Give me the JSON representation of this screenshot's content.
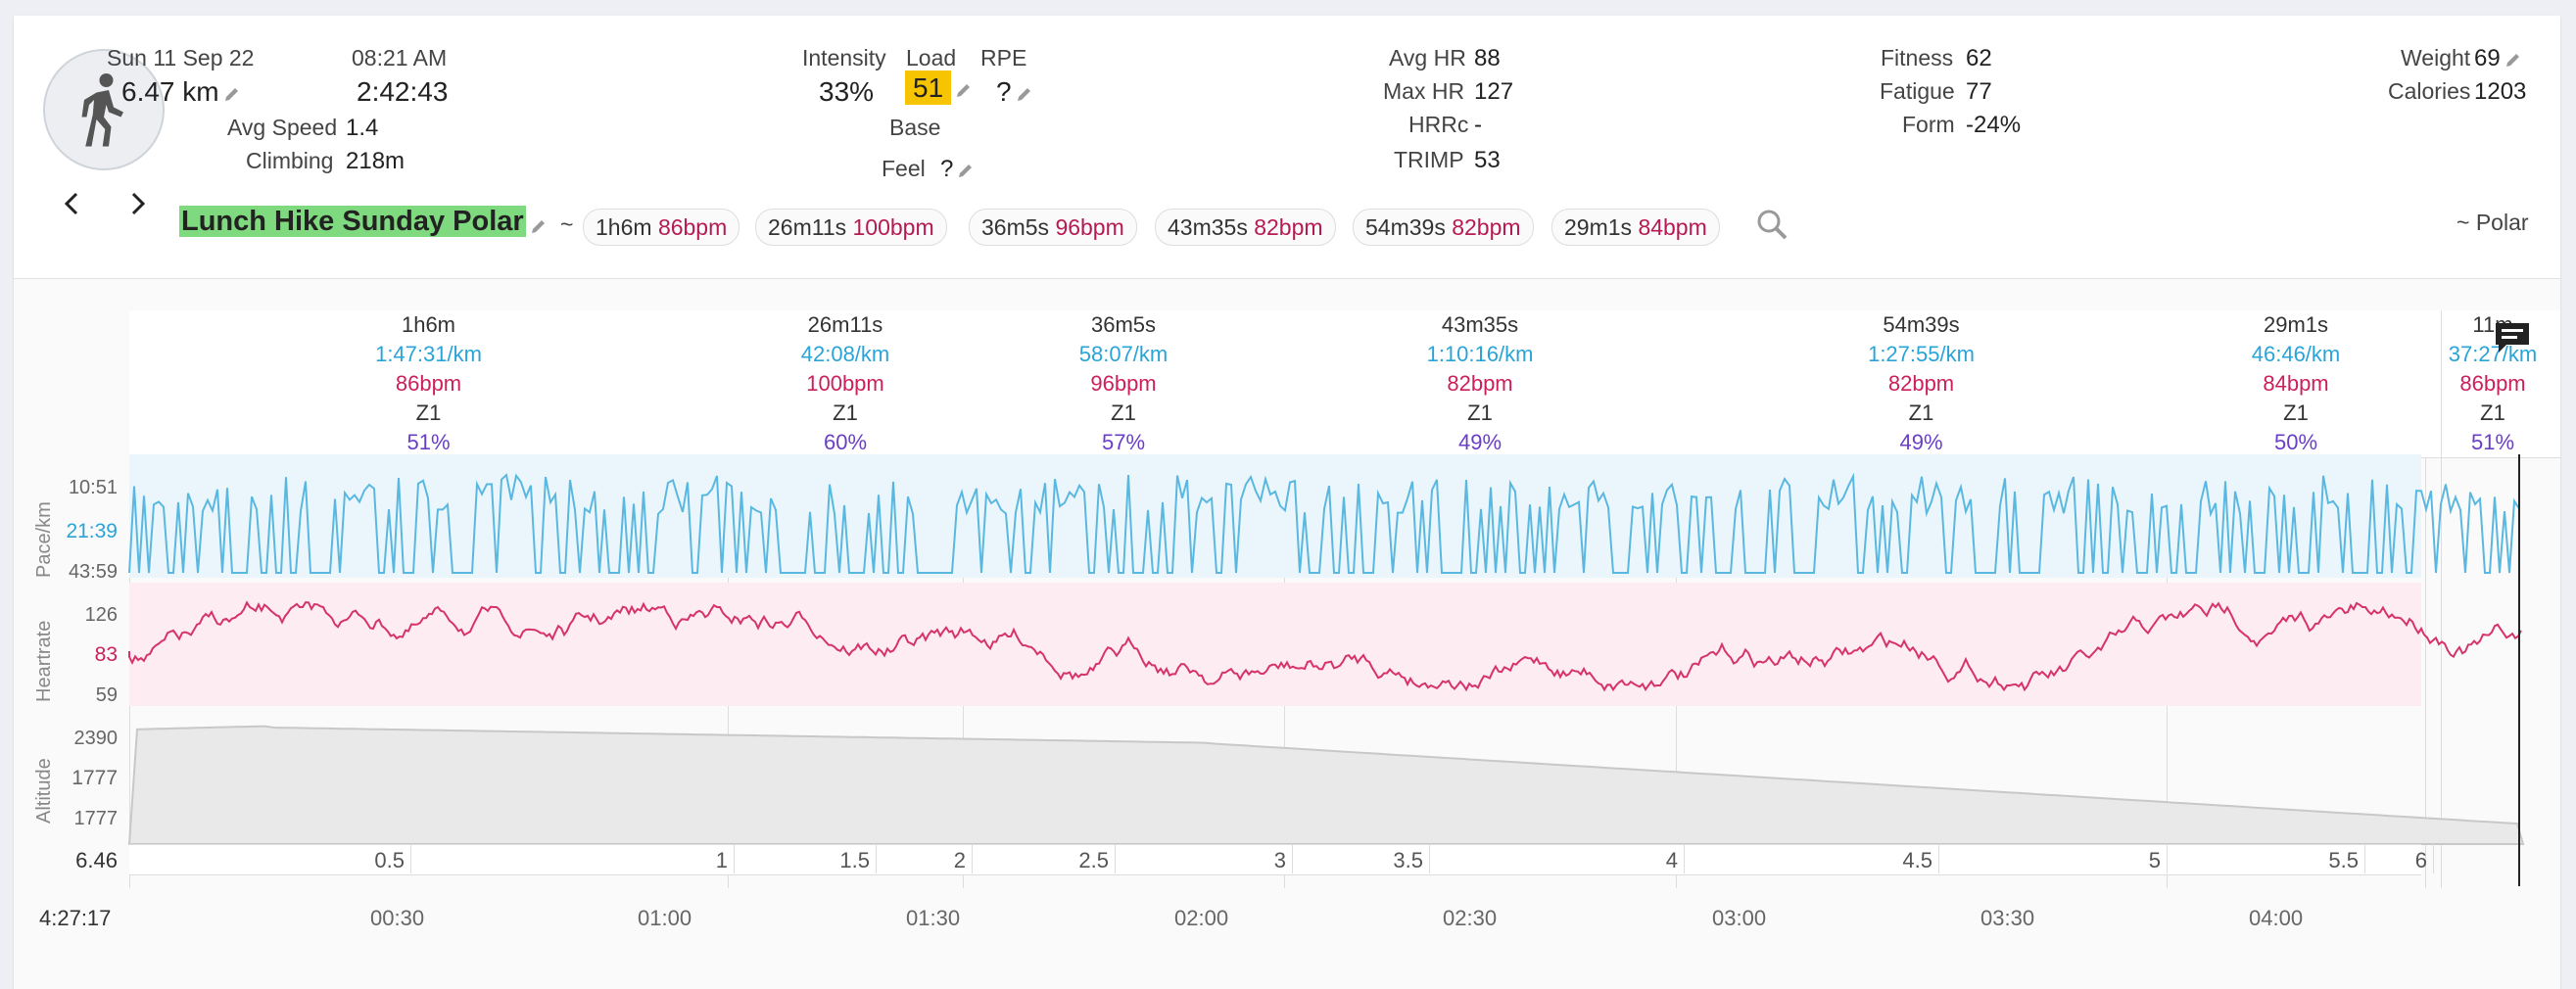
{
  "header": {
    "date": "Sun 11 Sep 22",
    "time": "08:21 AM",
    "distance": "6.47 km",
    "duration": "2:42:43",
    "avg_speed_label": "Avg Speed",
    "avg_speed": "1.4",
    "climbing_label": "Climbing",
    "climbing": "218m",
    "intensity_label": "Intensity",
    "intensity": "33%",
    "load_label": "Load",
    "load": "51",
    "rpe_label": "RPE",
    "rpe": "?",
    "base_label": "Base",
    "feel_label": "Feel",
    "feel": "?",
    "avg_hr_label": "Avg HR",
    "avg_hr": "88",
    "max_hr_label": "Max HR",
    "max_hr": "127",
    "hrrc_label": "HRRc",
    "hrrc": "-",
    "trimp_label": "TRIMP",
    "trimp": "53",
    "fitness_label": "Fitness",
    "fitness": "62",
    "fatigue_label": "Fatigue",
    "fatigue": "77",
    "form_label": "Form",
    "form": "-24%",
    "weight_label": "Weight",
    "weight": "69",
    "calories_label": "Calories",
    "calories": "1203",
    "activity_icon": "walking-person-icon",
    "activity_title": "Lunch Hike Sunday Polar",
    "tilde": "~",
    "source": "~ Polar"
  },
  "chips": [
    {
      "dur": "1h6m",
      "bpm": "86bpm"
    },
    {
      "dur": "26m11s",
      "bpm": "100bpm"
    },
    {
      "dur": "36m5s",
      "bpm": "96bpm"
    },
    {
      "dur": "43m35s",
      "bpm": "82bpm"
    },
    {
      "dur": "54m39s",
      "bpm": "82bpm"
    },
    {
      "dur": "29m1s",
      "bpm": "84bpm"
    }
  ],
  "intervals": [
    {
      "dur": "1h6m",
      "pace": "1:47:31/km",
      "hr": "86bpm",
      "zone": "Z1",
      "pct": "51%"
    },
    {
      "dur": "26m11s",
      "pace": "42:08/km",
      "hr": "100bpm",
      "zone": "Z1",
      "pct": "60%"
    },
    {
      "dur": "36m5s",
      "pace": "58:07/km",
      "hr": "96bpm",
      "zone": "Z1",
      "pct": "57%"
    },
    {
      "dur": "43m35s",
      "pace": "1:10:16/km",
      "hr": "82bpm",
      "zone": "Z1",
      "pct": "49%"
    },
    {
      "dur": "54m39s",
      "pace": "1:27:55/km",
      "hr": "82bpm",
      "zone": "Z1",
      "pct": "49%"
    },
    {
      "dur": "29m1s",
      "pace": "46:46/km",
      "hr": "84bpm",
      "zone": "Z1",
      "pct": "50%"
    },
    {
      "dur": "11m",
      "pace": "37:27/km",
      "hr": "86bpm",
      "zone": "Z1",
      "pct": "51%"
    }
  ],
  "axes": {
    "pace_title": "Pace/km",
    "pace_ticks": [
      "10:51",
      "21:39",
      "43:59"
    ],
    "hr_title": "Heartrate",
    "hr_ticks": [
      "126",
      "83",
      "59"
    ],
    "alt_title": "Altitude",
    "alt_ticks": [
      "2390",
      "1777",
      "1777"
    ],
    "total_distance": "6.46",
    "total_time": "4:27:17",
    "distance_marks": [
      "0.5",
      "1",
      "1.5",
      "2",
      "2.5",
      "3",
      "3.5",
      "4",
      "4.5",
      "5",
      "5.5",
      "6"
    ],
    "time_marks": [
      "00:30",
      "01:00",
      "01:30",
      "02:00",
      "02:30",
      "03:00",
      "03:30",
      "04:00"
    ]
  },
  "colors": {
    "pace": "#5ab8e0",
    "heartrate": "#d6336c",
    "altitude_fill": "#e8e8e8",
    "load_highlight": "#f6c400",
    "title_highlight": "#7fd97f"
  }
}
